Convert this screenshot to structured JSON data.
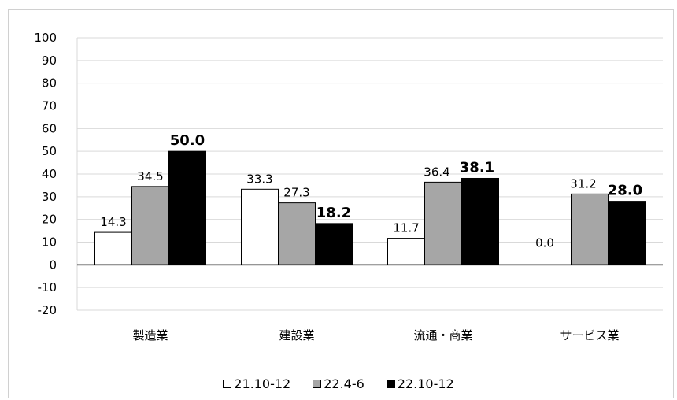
{
  "chart_data": {
    "type": "bar",
    "categories": [
      "製造業",
      "建設業",
      "流通・商業",
      "サービス業"
    ],
    "series": [
      {
        "name": "21.10-12",
        "values": [
          14.3,
          33.3,
          11.7,
          0.0
        ],
        "color": "#ffffff"
      },
      {
        "name": "22.4-6",
        "values": [
          34.5,
          27.3,
          36.4,
          31.2
        ],
        "color": "#a6a6a6"
      },
      {
        "name": "22.10-12",
        "values": [
          50.0,
          18.2,
          38.1,
          28.0
        ],
        "color": "#000000"
      }
    ],
    "ylim": [
      -20,
      100
    ],
    "yticks": [
      100,
      90,
      80,
      70,
      60,
      50,
      40,
      30,
      20,
      10,
      0,
      -10,
      -20
    ],
    "grid": true,
    "legend_position": "bottom",
    "bold_series": 2
  }
}
